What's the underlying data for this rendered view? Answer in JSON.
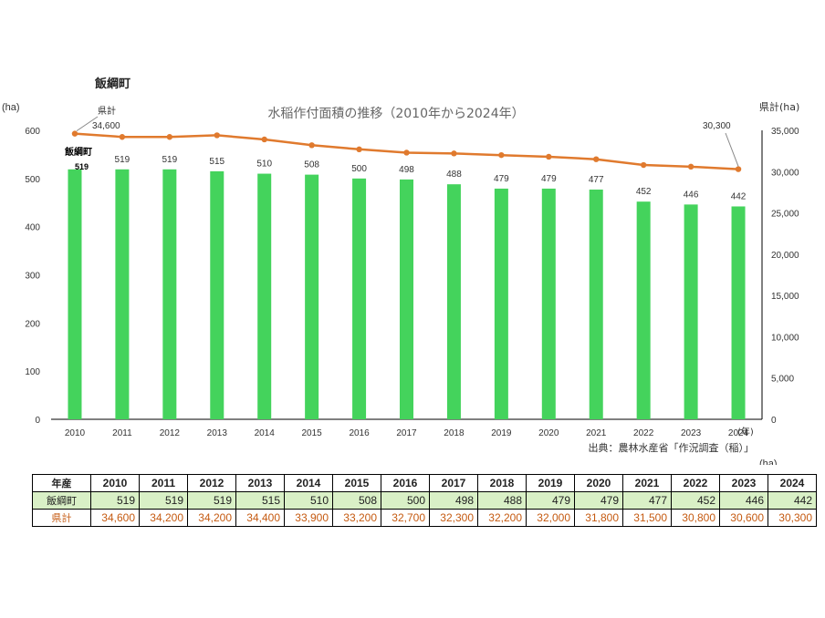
{
  "page_title": "飯綱町",
  "colors": {
    "bar": "#44d35c",
    "line": "#e07a2e",
    "pref_text": "#c55a11",
    "town_row_bg": "#d9f0c6"
  },
  "chart_data": {
    "type": "bar+line",
    "title": "水稲作付面積の推移（2010年から2024年）",
    "categories": [
      "2010",
      "2011",
      "2012",
      "2013",
      "2014",
      "2015",
      "2016",
      "2017",
      "2018",
      "2019",
      "2020",
      "2021",
      "2022",
      "2023",
      "2024"
    ],
    "series": [
      {
        "name": "飯綱町",
        "type": "bar",
        "axis": "left",
        "values": [
          519,
          519,
          519,
          515,
          510,
          508,
          500,
          498,
          488,
          479,
          479,
          477,
          452,
          446,
          442
        ]
      },
      {
        "name": "県計",
        "type": "line",
        "axis": "right",
        "values": [
          34600,
          34200,
          34200,
          34400,
          33900,
          33200,
          32700,
          32300,
          32200,
          32000,
          31800,
          31500,
          30800,
          30600,
          30300
        ]
      }
    ],
    "y_left": {
      "label": "(ha)",
      "min": 0,
      "max": 600,
      "ticks": [
        "0",
        "100",
        "200",
        "300",
        "400",
        "500",
        "600"
      ]
    },
    "y_right": {
      "label": "県計(ha)",
      "min": 0,
      "max": 35000,
      "ticks": [
        "0",
        "5,000",
        "10,000",
        "15,000",
        "20,000",
        "25,000",
        "30,000",
        "35,000"
      ]
    },
    "xlabel": "(年)",
    "annotations": {
      "line_label": "県計",
      "line_first": "34,600",
      "line_last": "30,300",
      "bar_label": "飯綱町",
      "bar_first": "519"
    },
    "source": "出典：農林水産省「作況調査（稲）」",
    "unit_note": "(ha)"
  },
  "table": {
    "head_label": "年産",
    "years": [
      "2010",
      "2011",
      "2012",
      "2013",
      "2014",
      "2015",
      "2016",
      "2017",
      "2018",
      "2019",
      "2020",
      "2021",
      "2022",
      "2023",
      "2024"
    ],
    "rows": [
      {
        "label": "飯綱町",
        "values": [
          "519",
          "519",
          "519",
          "515",
          "510",
          "508",
          "500",
          "498",
          "488",
          "479",
          "479",
          "477",
          "452",
          "446",
          "442"
        ]
      },
      {
        "label": "県計",
        "values": [
          "34,600",
          "34,200",
          "34,200",
          "34,400",
          "33,900",
          "33,200",
          "32,700",
          "32,300",
          "32,200",
          "32,000",
          "31,800",
          "31,500",
          "30,800",
          "30,600",
          "30,300"
        ]
      }
    ]
  }
}
